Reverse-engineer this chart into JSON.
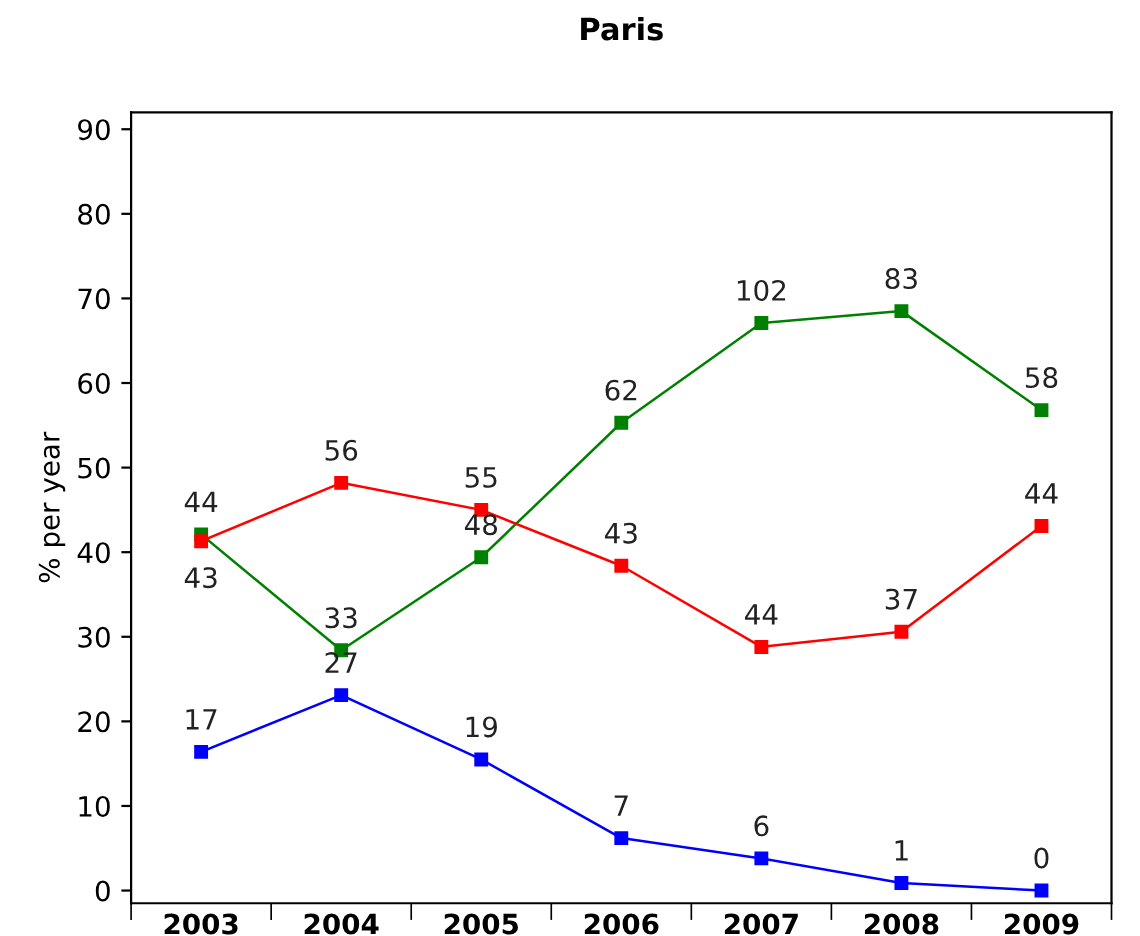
{
  "chart_data": {
    "type": "line",
    "title": "Paris",
    "ylabel": "% per year",
    "categories": [
      "2003",
      "2004",
      "2005",
      "2006",
      "2007",
      "2008",
      "2009"
    ],
    "series": [
      {
        "color": "#008000",
        "values": [
          42.1,
          28.4,
          39.4,
          55.3,
          67.1,
          68.5,
          56.8
        ]
      },
      {
        "color": "#ff0000",
        "values": [
          41.3,
          48.2,
          45.0,
          38.4,
          28.8,
          30.6,
          43.1
        ]
      },
      {
        "color": "#0000ff",
        "values": [
          16.4,
          23.1,
          15.5,
          6.2,
          3.8,
          0.9,
          0
        ]
      }
    ],
    "annotations": [
      {
        "text": "44",
        "x": "2003",
        "y": 42.1
      },
      {
        "text": "33",
        "x": "2004",
        "y": 28.4
      },
      {
        "text": "48",
        "x": "2005",
        "y": 39.4
      },
      {
        "text": "62",
        "x": "2006",
        "y": 55.3
      },
      {
        "text": "102",
        "x": "2007",
        "y": 67.1
      },
      {
        "text": "83",
        "x": "2008",
        "y": 68.5
      },
      {
        "text": "58",
        "x": "2009",
        "y": 56.8
      },
      {
        "text": "43",
        "x": "2003",
        "y": 41.3
      },
      {
        "text": "56",
        "x": "2004",
        "y": 48.2
      },
      {
        "text": "55",
        "x": "2005",
        "y": 45.0
      },
      {
        "text": "43",
        "x": "2006",
        "y": 38.4
      },
      {
        "text": "44",
        "x": "2007",
        "y": 28.8
      },
      {
        "text": "37",
        "x": "2008",
        "y": 30.6
      },
      {
        "text": "44",
        "x": "2009",
        "y": 43.1
      },
      {
        "text": "17",
        "x": "2003",
        "y": 16.4
      },
      {
        "text": "27",
        "x": "2004",
        "y": 23.1
      },
      {
        "text": "19",
        "x": "2005",
        "y": 15.5
      },
      {
        "text": "7",
        "x": "2006",
        "y": 6.2
      },
      {
        "text": "6",
        "x": "2007",
        "y": 3.8
      },
      {
        "text": "1",
        "x": "2008",
        "y": 0.9
      },
      {
        "text": "0",
        "x": "2009",
        "y": 0
      }
    ],
    "ylim": [
      -1.5,
      92
    ],
    "yticks": [
      0,
      10,
      20,
      30,
      40,
      50,
      60,
      70,
      80,
      90
    ],
    "marker": "square",
    "line_style": "solid",
    "grid": false,
    "legend": false
  }
}
